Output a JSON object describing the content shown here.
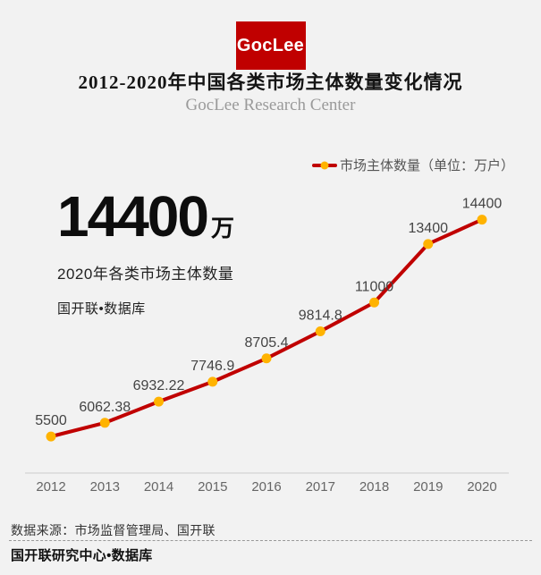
{
  "theme": {
    "accent_red": "#c00000",
    "marker_orange": "#ffb300",
    "page_bg": "#f2f2f2"
  },
  "brand": {
    "logo_text": "GocLee"
  },
  "header": {
    "title": "2012-2020年中国各类市场主体数量变化情况",
    "subtitle": "GocLee Research Center"
  },
  "legend": {
    "label": "市场主体数量（单位：万户）"
  },
  "stat": {
    "value": "14400",
    "unit": "万",
    "caption": "2020年各类市场主体数量",
    "source": "国开联•数据库"
  },
  "chart_data": {
    "type": "line",
    "title": "2012-2020年中国各类市场主体数量变化情况",
    "x": [
      2012,
      2013,
      2014,
      2015,
      2016,
      2017,
      2018,
      2019,
      2020
    ],
    "series": [
      {
        "name": "市场主体数量（单位：万户）",
        "values": [
          5500,
          6062.38,
          6932.22,
          7746.9,
          8705.4,
          9814.8,
          11000,
          13400,
          14400
        ]
      }
    ],
    "point_labels": [
      "5500",
      "6062.38",
      "6932.22",
      "7746.9",
      "8705.4",
      "9814.8",
      "11000",
      "13400",
      "14400"
    ],
    "xlabel": "",
    "ylabel": "",
    "ylim": [
      4000,
      16000
    ],
    "grid": false,
    "legend_position": "top-right",
    "line_color": "#c00000",
    "marker_color": "#ffb300"
  },
  "footer": {
    "source": "数据来源：市场监督管理局、国开联",
    "brand": "国开联研究中心•数据库"
  }
}
